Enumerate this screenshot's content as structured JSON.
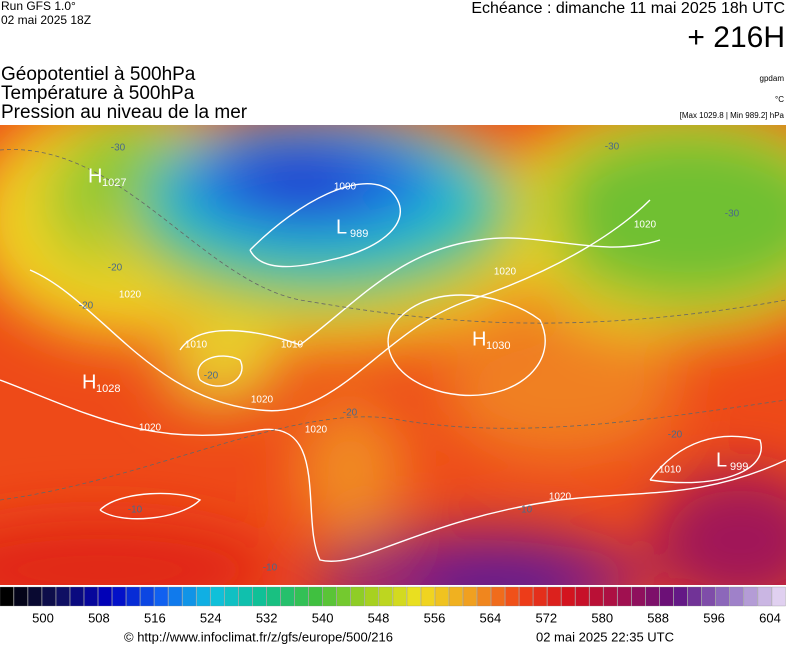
{
  "header": {
    "run": "Run GFS 1.0°",
    "run_date": "02 mai 2025 18Z",
    "valid": "Echéance : dimanche 11 mai 2025 18h UTC",
    "lead": "+ 216H",
    "fields": [
      "Géopotentiel à 500hPa",
      "Température à 500hPa",
      "Pression au niveau de la mer"
    ],
    "geopotential_unit": "gpdam",
    "temperature_unit": "°C",
    "pressure_range": "[Max 1029.8 | Min 989.2] hPa"
  },
  "map": {
    "centers": [
      {
        "letter": "H",
        "value": 1027
      },
      {
        "letter": "L",
        "value": 989
      },
      {
        "letter": "H",
        "value": 1030
      },
      {
        "letter": "H",
        "value": 1028
      },
      {
        "letter": "L",
        "value": 999
      }
    ],
    "isobar_labels": [
      1000,
      1010,
      1010,
      1010,
      1020,
      1020,
      1020,
      1020,
      1020,
      1020,
      1020
    ],
    "temperature_labels": [
      -30,
      -30,
      -30,
      -20,
      -20,
      -20,
      -20,
      -20,
      -10,
      -10,
      -10
    ]
  },
  "colorbar": {
    "labels": [
      500,
      508,
      516,
      524,
      532,
      540,
      548,
      556,
      564,
      572,
      580,
      588,
      596,
      604
    ]
  },
  "footer": {
    "source": "© http://www.infoclimat.fr/z/gfs/europe/500/216",
    "generated": "02 mai 2025 22:35 UTC"
  }
}
